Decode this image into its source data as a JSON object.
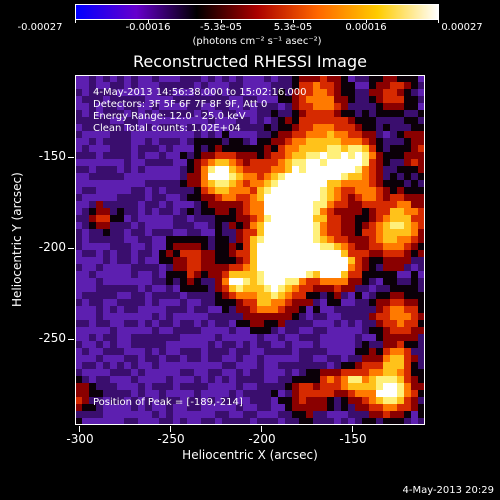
{
  "colorbar": {
    "labels": [
      "-0.00027",
      "-0.00016",
      "-5.3e-05",
      "5.3e-05",
      "0.00016",
      "0.00027"
    ],
    "unit": "(photons cm⁻² s⁻¹ asec⁻²)",
    "colormap": [
      "#0000ff",
      "#6600cc",
      "#000000",
      "#aa0000",
      "#ff6600",
      "#ffcc00",
      "#ffffff"
    ]
  },
  "title": "Reconstructed RHESSI Image",
  "info": {
    "time_range": "4-May-2013 14:56:38.000 to 15:02:16.000",
    "detectors": "Detectors: 3F 5F 6F 7F 8F 9F, Att 0",
    "energy": "Energy Range: 12.0 - 25.0 keV",
    "clean": "Clean    Total counts: 1.02E+04"
  },
  "peak": "Position of Peak = [-189,-214]",
  "x_ticks": [
    "-300",
    "-250",
    "-200",
    "-150"
  ],
  "y_ticks": [
    "-150",
    "-200",
    "-250"
  ],
  "xlabel": "Heliocentric X (arcsec)",
  "ylabel": "Heliocentric Y (arcsec)",
  "footer": "4-May-2013 20:29"
}
